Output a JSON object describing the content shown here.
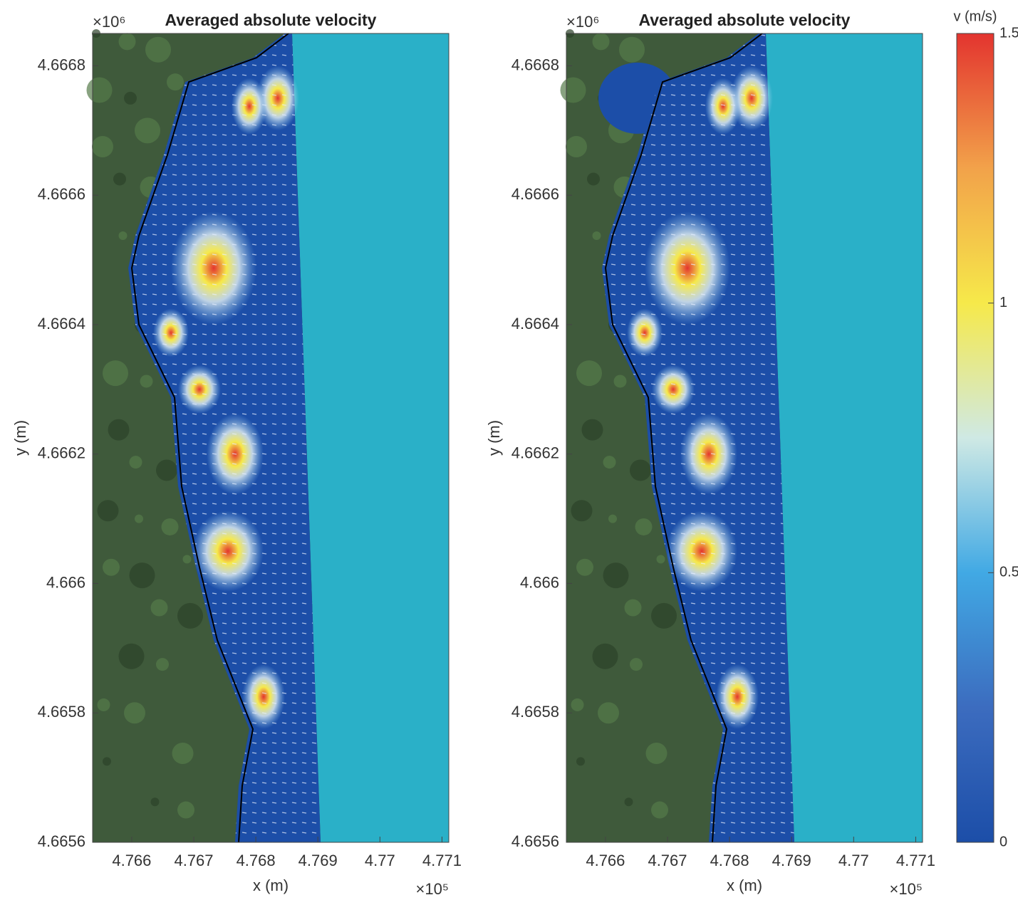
{
  "chart_data": [
    {
      "type": "map",
      "title": "Averaged absolute velocity",
      "x_label": "x (m)",
      "y_label": "y (m)",
      "x_multiplier": "×10⁵",
      "y_multiplier": "×10⁶",
      "xlim": [
        476537,
        477111
      ],
      "ylim": [
        4665600,
        4666850
      ],
      "xticks": [
        {
          "value": 476600,
          "label": "4.766"
        },
        {
          "value": 476700,
          "label": "4.767"
        },
        {
          "value": 476800,
          "label": "4.768"
        },
        {
          "value": 476900,
          "label": "4.769"
        },
        {
          "value": 477000,
          "label": "4.77"
        },
        {
          "value": 477100,
          "label": "4.771"
        }
      ],
      "yticks": [
        {
          "value": 4665600,
          "label": "4.6656"
        },
        {
          "value": 4665800,
          "label": "4.6658"
        },
        {
          "value": 4666000,
          "label": "4.666"
        },
        {
          "value": 4666200,
          "label": "4.6662"
        },
        {
          "value": 4666400,
          "label": "4.6664"
        },
        {
          "value": 4666600,
          "label": "4.6666"
        },
        {
          "value": 4666800,
          "label": "4.6668"
        }
      ]
    },
    {
      "type": "map",
      "title": "Averaged absolute velocity",
      "x_label": "x (m)",
      "y_label": "y (m)",
      "x_multiplier": "×10⁵",
      "y_multiplier": "×10⁶",
      "xlim": [
        476537,
        477111
      ],
      "ylim": [
        4665600,
        4666850
      ],
      "xticks": [
        {
          "value": 476600,
          "label": "4.766"
        },
        {
          "value": 476700,
          "label": "4.767"
        },
        {
          "value": 476800,
          "label": "4.768"
        },
        {
          "value": 476900,
          "label": "4.769"
        },
        {
          "value": 477000,
          "label": "4.77"
        },
        {
          "value": 477100,
          "label": "4.771"
        }
      ],
      "yticks": [
        {
          "value": 4665600,
          "label": "4.6656"
        },
        {
          "value": 4665800,
          "label": "4.6658"
        },
        {
          "value": 4666000,
          "label": "4.666"
        },
        {
          "value": 4666200,
          "label": "4.6662"
        },
        {
          "value": 4666400,
          "label": "4.6664"
        },
        {
          "value": 4666600,
          "label": "4.6666"
        },
        {
          "value": 4666800,
          "label": "4.6668"
        }
      ],
      "colorbar": {
        "label": "v (m/s)",
        "clim": [
          0,
          1.5
        ],
        "ticks": [
          0,
          0.5,
          1,
          1.5
        ],
        "colormap": [
          "#1c4ea8",
          "#3c6cbf",
          "#41a9e4",
          "#cfe9e4",
          "#f6e94a",
          "#f2a24a",
          "#e3342f"
        ]
      }
    }
  ]
}
